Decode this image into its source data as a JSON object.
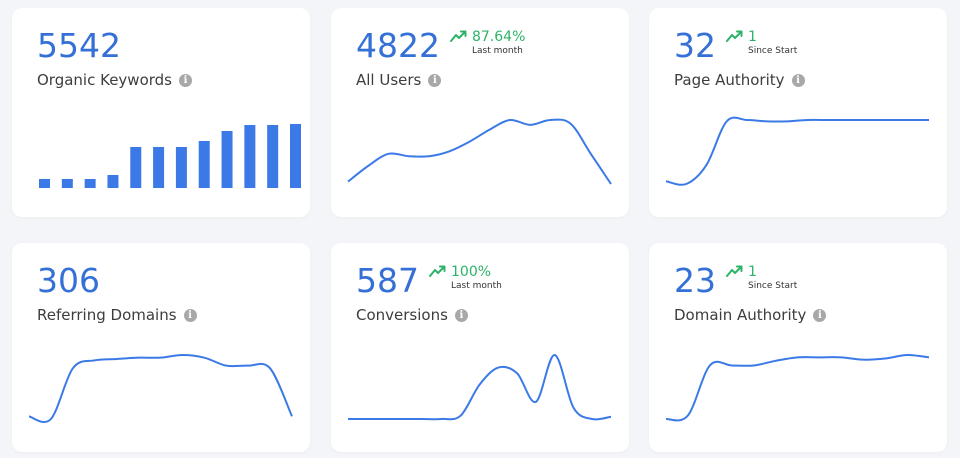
{
  "cards": [
    {
      "value": 5542,
      "label": "Organic Keywords",
      "sparkline": {
        "type": "bar",
        "color": "#3b7ae6",
        "values": [
          9,
          9,
          9,
          13,
          41,
          41,
          41,
          47,
          57,
          63,
          63,
          64
        ]
      }
    },
    {
      "value": 4822,
      "label": "All Users",
      "change": "87.64%",
      "change_note": "Last month",
      "sparkline": {
        "type": "line",
        "color": "#3b7ae6",
        "values": [
          7,
          20,
          30,
          28,
          28,
          32,
          40,
          50,
          58,
          54,
          58,
          55,
          30,
          5
        ]
      }
    },
    {
      "value": 32,
      "label": "Page Authority",
      "change": "1",
      "change_note": "Since Start",
      "sparkline": {
        "type": "line",
        "color": "#3b7ae6",
        "values": [
          8,
          6,
          20,
          52,
          53,
          52,
          52,
          53,
          53,
          53,
          53,
          53,
          53,
          53
        ]
      }
    },
    {
      "value": 306,
      "label": "Referring Domains",
      "sparkline": {
        "type": "line",
        "color": "#3b7ae6",
        "values": [
          9,
          7,
          45,
          51,
          52,
          53,
          53,
          55,
          53,
          47,
          47,
          45,
          9
        ]
      }
    },
    {
      "value": 587,
      "label": "Conversions",
      "change": "100%",
      "change_note": "Last month",
      "sparkline": {
        "type": "line",
        "color": "#3b7ae6",
        "values": [
          7,
          7,
          7,
          7,
          7,
          7,
          10,
          37,
          52,
          47,
          22,
          63,
          17,
          7,
          9
        ]
      }
    },
    {
      "value": 23,
      "label": "Domain Authority",
      "change": "1",
      "change_note": "Since Start",
      "sparkline": {
        "type": "line",
        "color": "#3b7ae6",
        "values": [
          7,
          10,
          53,
          53,
          53,
          57,
          60,
          60,
          60,
          58,
          59,
          62,
          60
        ]
      }
    }
  ]
}
